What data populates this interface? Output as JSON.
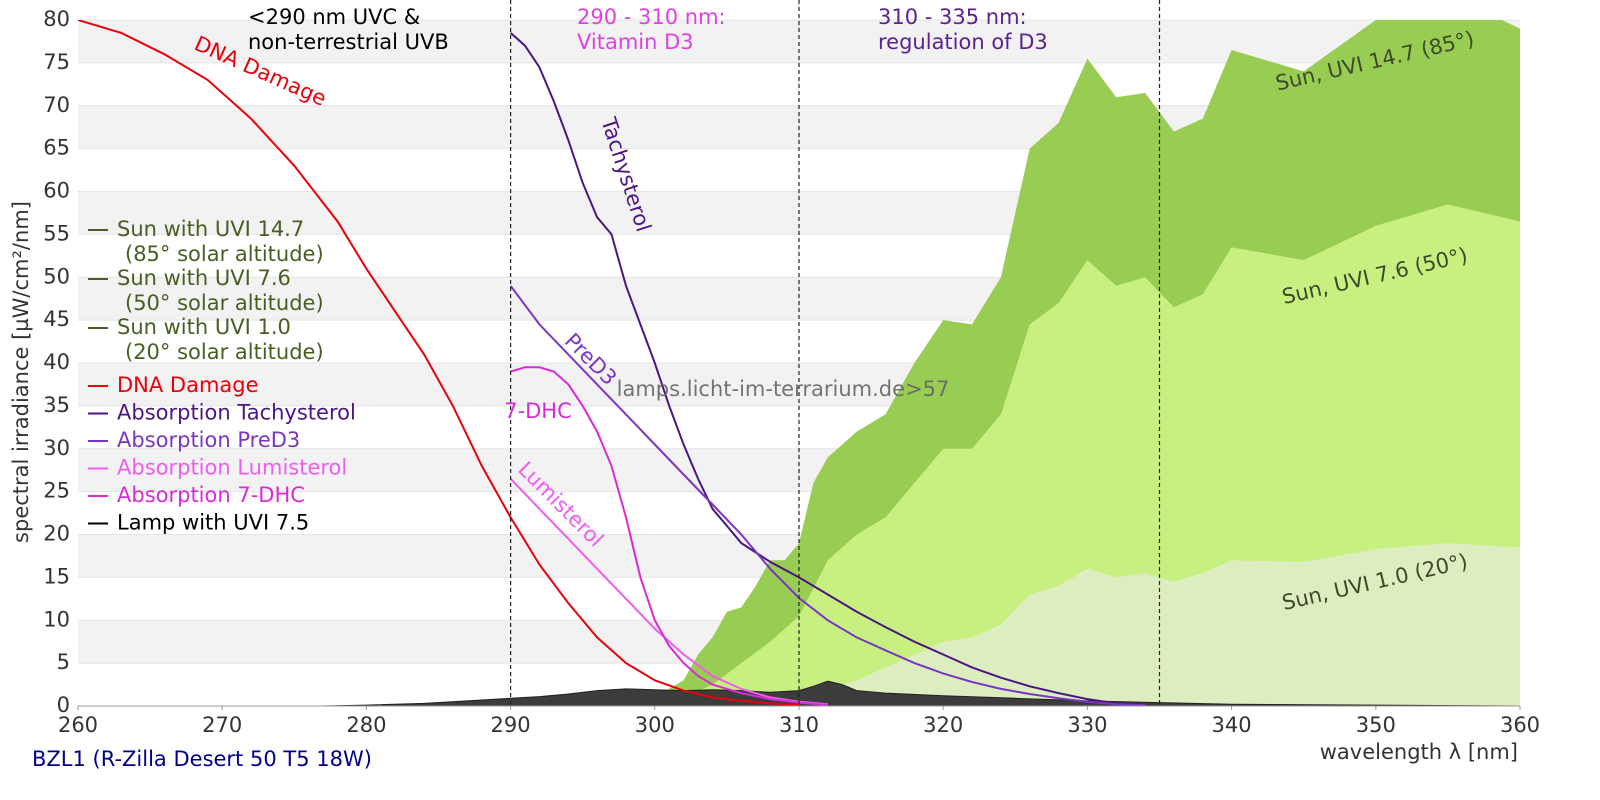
{
  "chart_data": {
    "type": "line",
    "subtitle": "BZL1 (R-Zilla Desert 50 T5 18W)",
    "xlabel": "wavelength λ [nm]",
    "ylabel": "spectral irradiance [µW/cm²/nm]",
    "watermark": "lamps.licht-im-terrarium.de>57",
    "xlim": [
      260,
      360
    ],
    "ylim": [
      0,
      80
    ],
    "xticks": [
      260,
      270,
      280,
      290,
      300,
      310,
      320,
      330,
      340,
      350,
      360
    ],
    "yticks": [
      0,
      5,
      10,
      15,
      20,
      25,
      30,
      35,
      40,
      45,
      50,
      55,
      60,
      65,
      70,
      75,
      80
    ],
    "grid": "bands",
    "vlines": [
      290,
      310,
      335
    ],
    "annotations": [
      {
        "lines": [
          "<290 nm UVC &",
          "non-terrestrial UVB"
        ],
        "color": "#000000"
      },
      {
        "lines": [
          "290 - 310 nm:",
          "Vitamin D3"
        ],
        "color": "#e040e0"
      },
      {
        "lines": [
          "310 - 335 nm:",
          "regulation of D3"
        ],
        "color": "#5b2290"
      }
    ],
    "series": [
      {
        "name": "Sun with UVI 14.7",
        "legend_sub": "(85° solar altitude)",
        "label": "Sun, UVI 14.7 (85°)",
        "kind": "area",
        "color": "#99cc52",
        "legend_color": "#4a5e23",
        "x": [
          300,
          302,
          303,
          304,
          305,
          306,
          307,
          308,
          309,
          310,
          311,
          312,
          313,
          314,
          315,
          316,
          318,
          320,
          322,
          324,
          326,
          328,
          330,
          332,
          334,
          336,
          338,
          340,
          345,
          350,
          355,
          360
        ],
        "values": [
          1,
          3,
          6,
          8,
          11,
          11.5,
          14,
          17,
          17,
          19,
          26,
          29,
          30.5,
          32,
          33,
          34,
          40,
          45,
          44.5,
          50,
          65,
          68,
          75.5,
          71,
          71.5,
          67,
          68.5,
          76.5,
          74,
          80,
          83,
          79
        ]
      },
      {
        "name": "Sun with UVI 7.6",
        "legend_sub": "(50° solar altitude)",
        "label": "Sun, UVI 7.6 (50°)",
        "kind": "area",
        "color": "#c8f080",
        "legend_color": "#4a5e23",
        "x": [
          300,
          302,
          304,
          306,
          308,
          310,
          312,
          314,
          316,
          318,
          320,
          322,
          324,
          326,
          328,
          330,
          332,
          334,
          336,
          338,
          340,
          345,
          350,
          355,
          360
        ],
        "values": [
          0.3,
          1,
          2.5,
          5,
          7.5,
          10.5,
          17,
          20,
          22,
          26,
          30,
          30,
          34,
          44.5,
          47,
          52,
          49,
          50,
          46.5,
          48,
          53.5,
          52,
          56,
          58.5,
          56.5
        ]
      },
      {
        "name": "Sun with UVI 1.0",
        "legend_sub": "(20° solar altitude)",
        "label": "Sun, UVI 1.0 (20°)",
        "kind": "area",
        "color": "#dcedbf",
        "legend_color": "#4a5e23",
        "x": [
          300,
          305,
          310,
          312,
          314,
          316,
          318,
          320,
          322,
          324,
          326,
          328,
          330,
          332,
          334,
          336,
          338,
          340,
          345,
          350,
          355,
          360
        ],
        "values": [
          0,
          0.5,
          1.3,
          2,
          3,
          4.5,
          6,
          7.5,
          8,
          9.5,
          13,
          14,
          16,
          15,
          15.5,
          14.5,
          15.5,
          17,
          16.8,
          18.3,
          19,
          18.5
        ]
      },
      {
        "name": "DNA Damage",
        "label": "DNA Damage",
        "kind": "line",
        "color": "#e8000b",
        "legend_color": "#e8000b",
        "x": [
          260,
          263,
          266,
          269,
          272,
          275,
          278,
          280,
          282,
          284,
          286,
          288,
          290,
          292,
          294,
          296,
          298,
          300,
          302,
          304,
          306,
          308,
          310
        ],
        "values": [
          80,
          78.5,
          76,
          73,
          68.5,
          63,
          56.5,
          51,
          46,
          41,
          35,
          28,
          22,
          16.5,
          12,
          8,
          5,
          3,
          1.8,
          1,
          0.6,
          0.3,
          0.1
        ]
      },
      {
        "name": "Absorption Tachysterol",
        "label": "Tachysterol",
        "kind": "line",
        "color": "#4b1682",
        "legend_color": "#4b1682",
        "x": [
          290,
          291,
          292,
          293,
          294,
          295,
          296,
          297,
          298,
          299,
          300,
          301,
          302,
          303,
          304,
          305,
          306,
          308,
          310,
          312,
          314,
          316,
          318,
          320,
          322,
          324,
          326,
          328,
          330,
          332,
          334
        ],
        "values": [
          78.5,
          77,
          74.5,
          70.5,
          66,
          61,
          57,
          55,
          49,
          44.5,
          40,
          35,
          30.5,
          26.5,
          23,
          21,
          19,
          16.8,
          15,
          13,
          11,
          9.2,
          7.5,
          6,
          4.5,
          3.3,
          2.3,
          1.5,
          0.8,
          0.3,
          0.1
        ]
      },
      {
        "name": "Absorption PreD3",
        "label": "PreD3",
        "kind": "line",
        "color": "#7b35c4",
        "legend_color": "#7b35c4",
        "x": [
          290,
          292,
          294,
          296,
          298,
          300,
          302,
          304,
          306,
          308,
          310,
          312,
          314,
          316,
          318,
          320,
          322,
          324,
          326,
          328,
          330,
          332,
          334
        ],
        "values": [
          49,
          44.5,
          41,
          37.5,
          34,
          30.5,
          27,
          23.5,
          20,
          16,
          12.6,
          10,
          8,
          6.5,
          5,
          3.8,
          2.8,
          2,
          1.4,
          0.9,
          0.5,
          0.2,
          0.1
        ]
      },
      {
        "name": "Absorption Lumisterol",
        "label": "Lumisterol",
        "kind": "line",
        "color": "#f05cf0",
        "legend_color": "#f05cf0",
        "x": [
          290,
          292,
          294,
          296,
          298,
          300,
          302,
          304,
          306,
          308,
          310,
          312
        ],
        "values": [
          26.5,
          23,
          19.5,
          16,
          12.5,
          9,
          6,
          3.5,
          2,
          1,
          0.5,
          0.2
        ]
      },
      {
        "name": "Absorption 7-DHC",
        "label": "7-DHC",
        "kind": "line",
        "color": "#d82ad8",
        "legend_color": "#d82ad8",
        "x": [
          290,
          291,
          292,
          293,
          294,
          295,
          296,
          297,
          298,
          299,
          300,
          301,
          302,
          303,
          304,
          306,
          308,
          310,
          312
        ],
        "values": [
          39,
          39.5,
          39.5,
          39,
          37.5,
          35,
          32,
          28,
          22,
          15,
          10,
          7,
          5,
          3.5,
          2.5,
          1.5,
          0.8,
          0.4,
          0.1
        ]
      },
      {
        "name": "Lamp with UVI 7.5",
        "kind": "lamp",
        "color": "#3c3c3c",
        "legend_color": "#000000",
        "x": [
          277,
          280,
          284,
          288,
          290,
          292,
          294,
          296,
          298,
          300,
          302,
          304,
          306,
          308,
          310,
          311,
          312,
          313,
          314,
          316,
          320,
          325,
          330,
          335,
          340,
          350,
          360
        ],
        "values": [
          0,
          0.1,
          0.3,
          0.7,
          0.9,
          1.1,
          1.4,
          1.8,
          2,
          1.9,
          1.8,
          1.9,
          1.8,
          1.6,
          1.8,
          2.3,
          2.9,
          2.5,
          1.8,
          1.5,
          1.2,
          0.9,
          0.6,
          0.4,
          0.2,
          0.1,
          0
        ]
      }
    ]
  }
}
